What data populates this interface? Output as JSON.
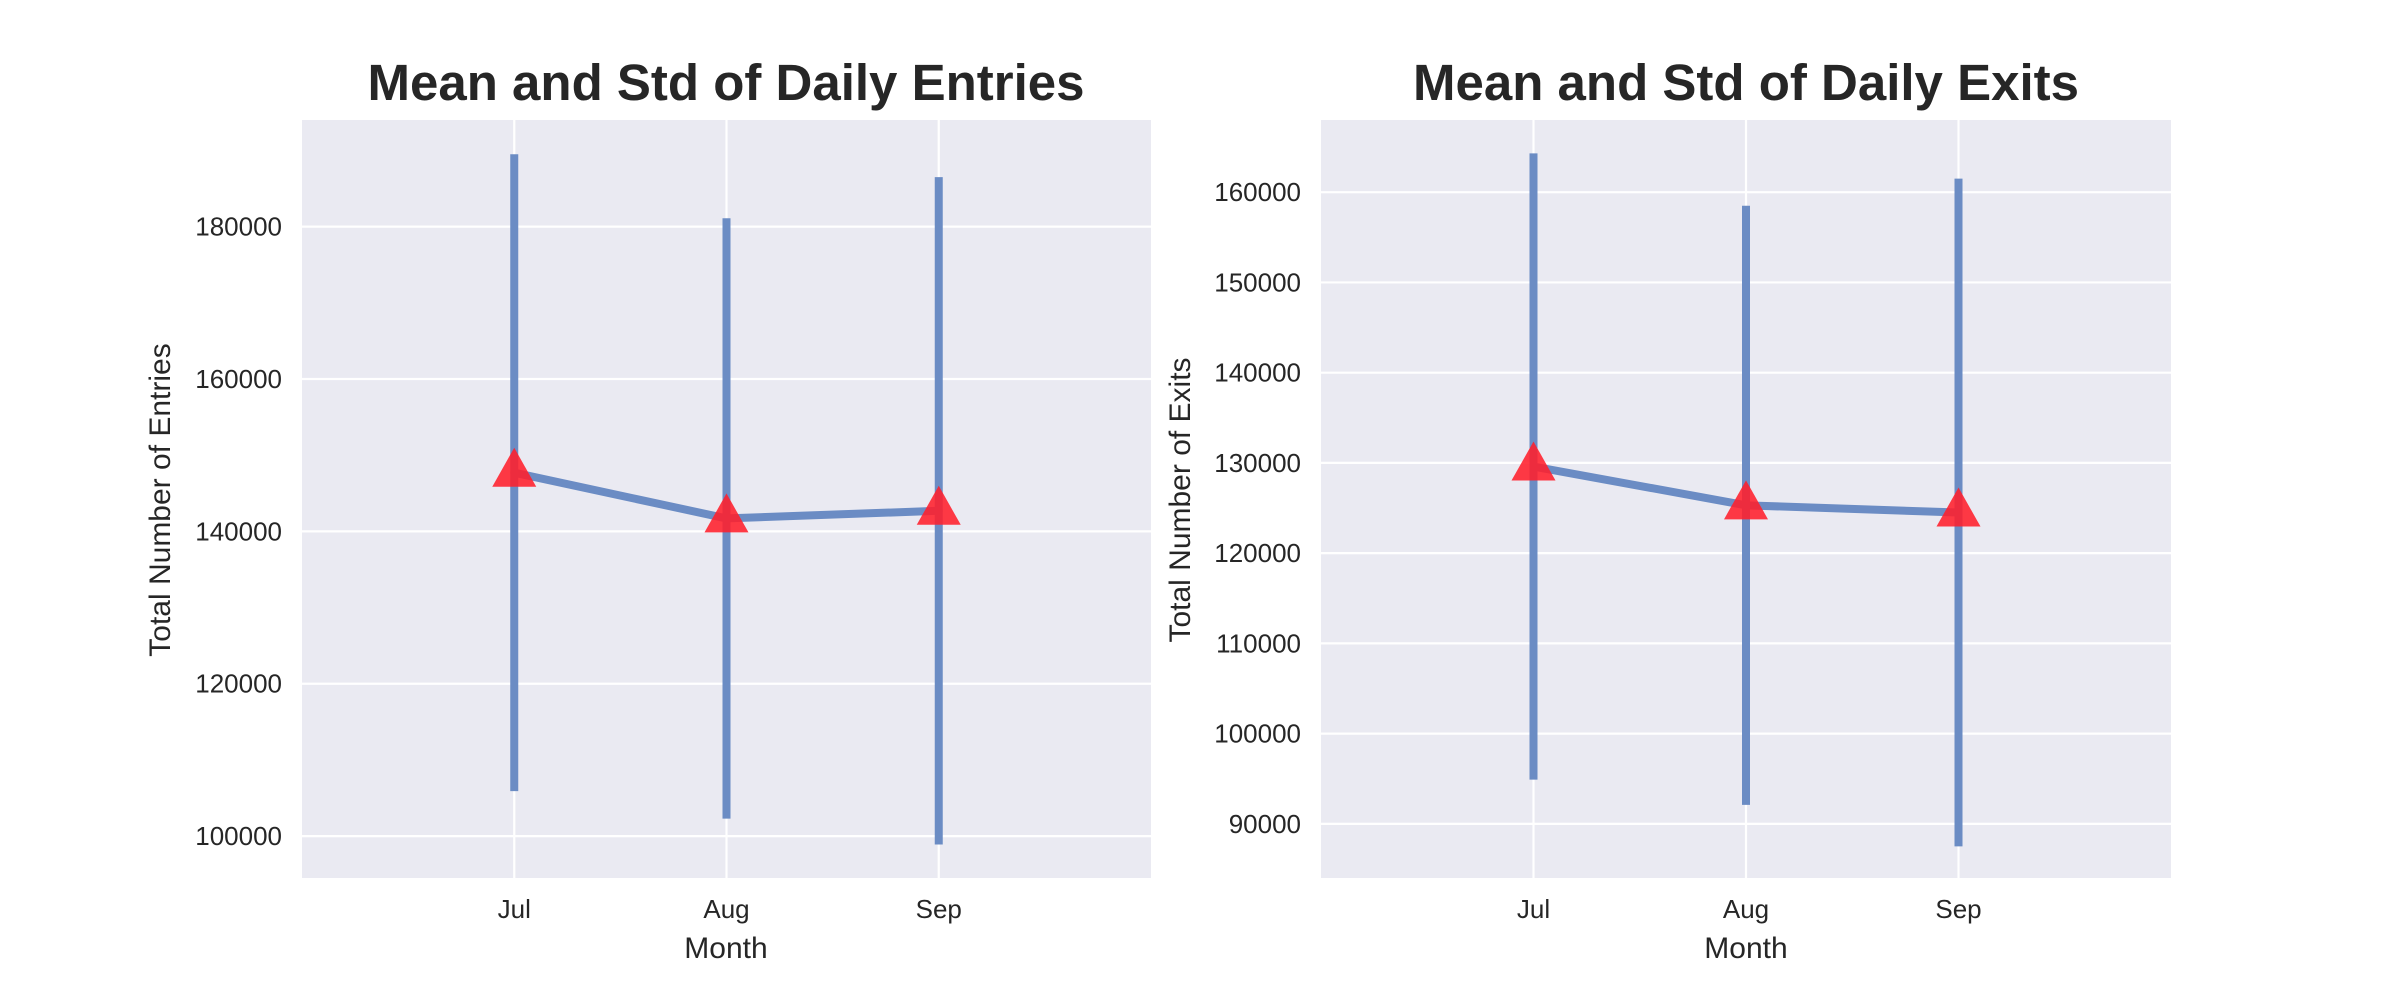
{
  "colors": {
    "plot_background": "#eaeaf2",
    "grid": "#ffffff",
    "series_line": "#6b8cc4",
    "mean_marker": "#ff1f2b",
    "text": "#262626"
  },
  "chart_data": [
    {
      "type": "line",
      "title": "Mean and Std of Daily Entries",
      "xlabel": "Month",
      "ylabel": "Total Number of Entries",
      "categories": [
        "Jul",
        "Aug",
        "Sep"
      ],
      "xlim": [
        -1,
        3
      ],
      "ylim": [
        94500,
        194000
      ],
      "yticks": [
        100000,
        120000,
        140000,
        160000,
        180000
      ],
      "mean": [
        147700,
        141700,
        142700
      ],
      "std": [
        41800,
        39400,
        43800
      ],
      "error_bar_low": [
        105900,
        102300,
        98900
      ],
      "error_bar_high": [
        189500,
        181100,
        186500
      ],
      "marker": "triangle",
      "grid": true,
      "legend": "none"
    },
    {
      "type": "line",
      "title": "Mean and Std of Daily Exits",
      "xlabel": "Month",
      "ylabel": "Total Number of Exits",
      "categories": [
        "Jul",
        "Aug",
        "Sep"
      ],
      "xlim": [
        -1,
        3
      ],
      "ylim": [
        84000,
        168000
      ],
      "yticks": [
        90000,
        100000,
        110000,
        120000,
        130000,
        140000,
        150000,
        160000
      ],
      "mean": [
        129600,
        125300,
        124500
      ],
      "std": [
        34700,
        33200,
        37000
      ],
      "error_bar_low": [
        94900,
        92100,
        87500
      ],
      "error_bar_high": [
        164300,
        158500,
        161500
      ],
      "marker": "triangle",
      "grid": true,
      "legend": "none"
    }
  ]
}
